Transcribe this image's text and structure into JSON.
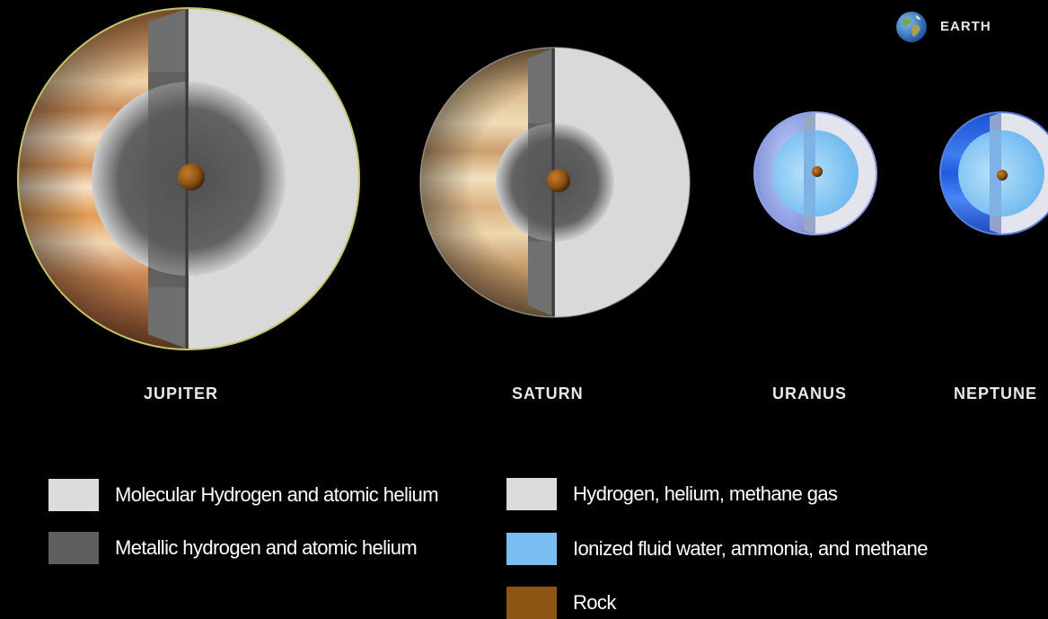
{
  "earth": {
    "label": "EARTH",
    "icon": "earth-icon"
  },
  "planets": [
    {
      "name": "JUPITER"
    },
    {
      "name": "SATURN"
    },
    {
      "name": "URANUS"
    },
    {
      "name": "NEPTUNE"
    }
  ],
  "legend": {
    "left": [
      {
        "label": "Molecular Hydrogen and atomic helium",
        "color": "#dcdcdc"
      },
      {
        "label": "Metallic hydrogen and atomic helium",
        "color": "#5e5e5e"
      }
    ],
    "right": [
      {
        "label": "Hydrogen, helium, methane gas",
        "color": "#dcdcdc"
      },
      {
        "label": "Ionized fluid water, ammonia, and methane",
        "color": "#79bff2"
      },
      {
        "label": "Rock",
        "color": "#8e5413"
      }
    ]
  }
}
